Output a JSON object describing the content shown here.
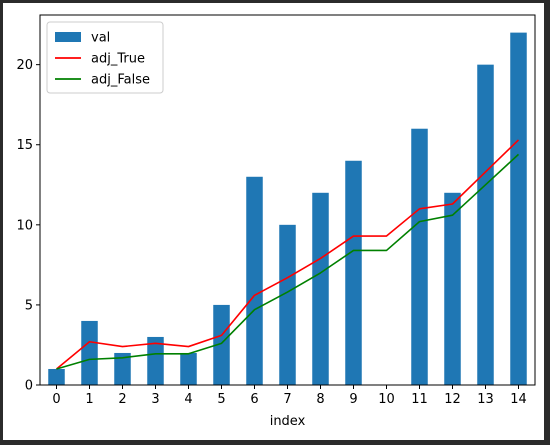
{
  "chart_data": {
    "type": "bar",
    "categories": [
      "0",
      "1",
      "2",
      "3",
      "4",
      "5",
      "6",
      "7",
      "8",
      "9",
      "10",
      "11",
      "12",
      "13",
      "14"
    ],
    "series": [
      {
        "name": "val",
        "kind": "bar",
        "color": "#1f77b4",
        "values": [
          1,
          4,
          2,
          3,
          2,
          5,
          13,
          10,
          12,
          14,
          0,
          16,
          12,
          20,
          22
        ]
      },
      {
        "name": "adj_True",
        "kind": "line",
        "color": "#ff0000",
        "values": [
          1.0,
          2.7,
          2.4,
          2.6,
          2.4,
          3.1,
          5.6,
          6.7,
          7.9,
          9.3,
          9.3,
          11.0,
          11.3,
          13.3,
          15.3
        ]
      },
      {
        "name": "adj_False",
        "kind": "line",
        "color": "#008000",
        "values": [
          1.0,
          1.6,
          1.7,
          1.95,
          1.95,
          2.6,
          4.7,
          5.8,
          7.0,
          8.4,
          8.4,
          10.2,
          10.6,
          12.5,
          14.4
        ]
      }
    ],
    "xlabel": "index",
    "ylabel": "",
    "ylim": [
      0,
      23.1
    ],
    "yticks": [
      0,
      5,
      10,
      15,
      20
    ],
    "grid": false,
    "legend_position": "top-left"
  }
}
